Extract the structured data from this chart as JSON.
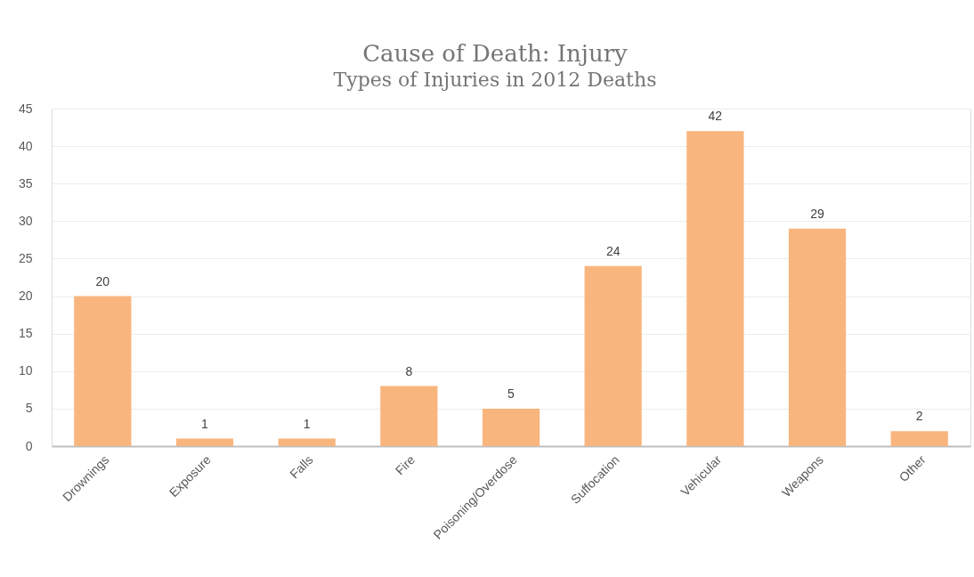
{
  "chart_data": {
    "type": "bar",
    "title": "Cause of Death: Injury",
    "subtitle": "Types of Injuries in 2012 Deaths",
    "categories": [
      "Drownings",
      "Exposure",
      "Falls",
      "Fire",
      "Poisoning/Overdose",
      "Suffocation",
      "Vehicular",
      "Weapons",
      "Other"
    ],
    "values": [
      20,
      1,
      1,
      8,
      5,
      24,
      42,
      29,
      2
    ],
    "color": "#f9b57e",
    "ylim": [
      0,
      45
    ],
    "yticks": [
      0,
      5,
      10,
      15,
      20,
      25,
      30,
      35,
      40,
      45
    ],
    "grid": "y",
    "data_labels": true
  }
}
